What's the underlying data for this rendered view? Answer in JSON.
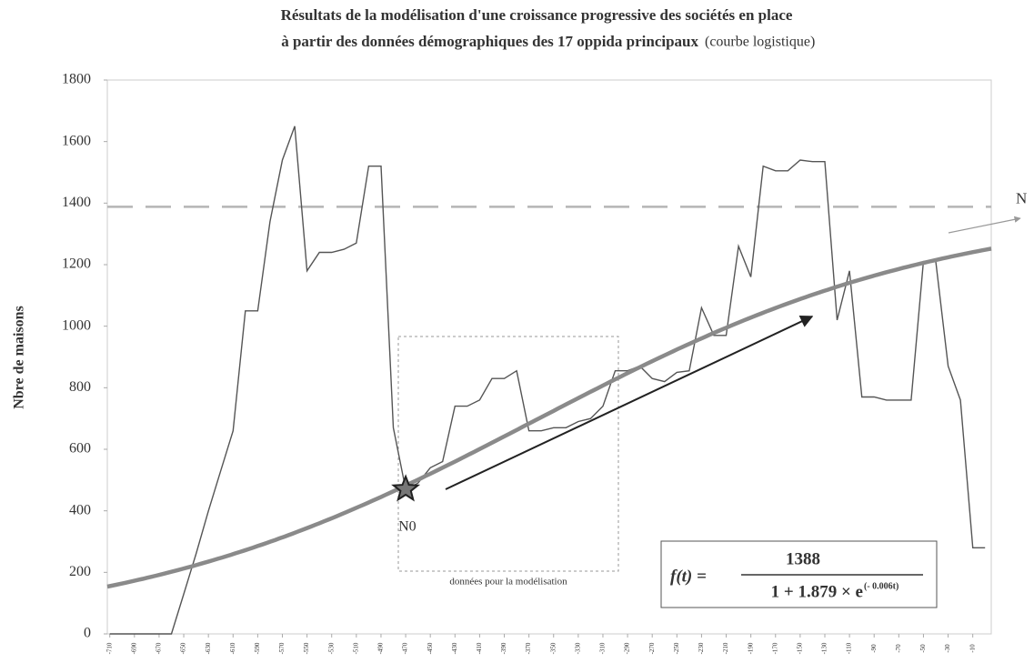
{
  "chart_data": {
    "type": "line",
    "title": "Résultats de la modélisation d'une croissance progressive des sociétés en place",
    "title_line2": "à partir des données démographiques des 17 oppida principaux",
    "title_suffix": "(courbe logistique)",
    "ylabel": "Nbre de maisons",
    "x": [
      -710,
      -700,
      -690,
      -680,
      -670,
      -660,
      -650,
      -640,
      -630,
      -620,
      -610,
      -600,
      -590,
      -580,
      -570,
      -560,
      -550,
      -540,
      -530,
      -520,
      -510,
      -500,
      -490,
      -480,
      -470,
      -460,
      -450,
      -440,
      -430,
      -420,
      -410,
      -400,
      -390,
      -380,
      -370,
      -360,
      -350,
      -340,
      -330,
      -320,
      -310,
      -300,
      -290,
      -280,
      -270,
      -260,
      -250,
      -240,
      -230,
      -220,
      -210,
      -200,
      -190,
      -180,
      -170,
      -160,
      -150,
      -140,
      -130,
      -120,
      -110,
      -100,
      -90,
      -80,
      -70,
      -60,
      -50,
      -40,
      -30,
      -20,
      -10,
      0
    ],
    "series": [
      {
        "color": "#555555",
        "values": [
          0,
          0,
          0,
          0,
          0,
          0,
          130,
          260,
          400,
          530,
          660,
          1050,
          1050,
          1340,
          1540,
          1650,
          1180,
          1240,
          1240,
          1250,
          1270,
          1520,
          1520,
          670,
          470,
          490,
          540,
          560,
          740,
          740,
          760,
          830,
          830,
          855,
          660,
          660,
          670,
          670,
          690,
          700,
          740,
          855,
          855,
          870,
          830,
          820,
          850,
          855,
          1060,
          970,
          970,
          1260,
          1160,
          1520,
          1505,
          1505,
          1540,
          1535,
          1535,
          1020,
          1180,
          770,
          770,
          760,
          760,
          760,
          1210,
          1210,
          870,
          760,
          280,
          280
        ]
      }
    ],
    "model": {
      "K": 1388,
      "a": 1.879,
      "r": -0.006,
      "color": "#8a8a8a"
    },
    "n0": {
      "x": -470,
      "y": 470,
      "label": "N0"
    },
    "n_line": {
      "value": 1388,
      "label": "N"
    },
    "model_window": {
      "label": "données pour la modélisation"
    },
    "formula": {
      "lhs": "f(t) =",
      "numerator": "1388",
      "denominator": "1 + 1.879 × e",
      "exponent": "(- 0.006t)"
    },
    "xlim": [
      -712,
      5
    ],
    "ylim": [
      0,
      1800
    ],
    "yticks": [
      0,
      200,
      400,
      600,
      800,
      1000,
      1200,
      1400,
      1600,
      1800
    ],
    "xticks": [
      -710,
      -690,
      -670,
      -650,
      -630,
      -610,
      -590,
      -570,
      -550,
      -530,
      -510,
      -490,
      -470,
      -450,
      -430,
      -410,
      -390,
      -370,
      -350,
      -330,
      -310,
      -290,
      -270,
      -250,
      -230,
      -210,
      -190,
      -170,
      -150,
      -130,
      -110,
      -90,
      -70,
      -50,
      -30,
      -10
    ]
  }
}
